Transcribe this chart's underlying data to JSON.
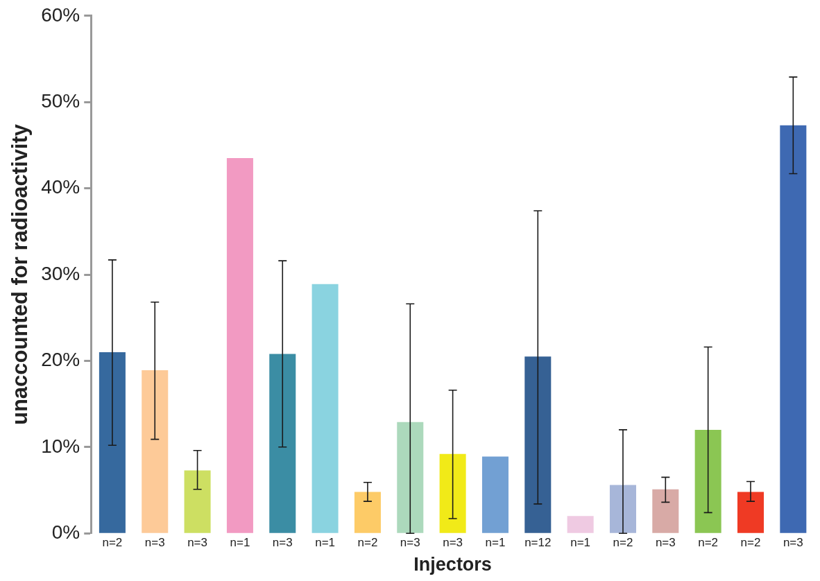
{
  "chart_data": {
    "type": "bar",
    "xlabel": "Injectors",
    "ylabel": "unaccounted for radioactivity",
    "categories": [
      "n=2",
      "n=3",
      "n=3",
      "n=1",
      "n=3",
      "n=1",
      "n=2",
      "n=3",
      "n=3",
      "n=1",
      "n=12",
      "n=1",
      "n=2",
      "n=3",
      "n=2",
      "n=2",
      "n=3"
    ],
    "values": [
      21.0,
      18.9,
      7.3,
      43.5,
      20.8,
      28.9,
      4.8,
      12.9,
      9.2,
      8.9,
      20.5,
      2.0,
      5.6,
      5.1,
      12.0,
      4.8,
      47.3
    ],
    "errors": [
      [
        10.2,
        31.7
      ],
      [
        10.9,
        26.8
      ],
      [
        5.1,
        9.6
      ],
      null,
      [
        10.0,
        31.6
      ],
      null,
      [
        3.7,
        5.9
      ],
      [
        0,
        26.6
      ],
      [
        1.7,
        16.6
      ],
      null,
      [
        3.4,
        37.4
      ],
      null,
      [
        0,
        12.0
      ],
      [
        3.6,
        6.5
      ],
      [
        2.4,
        21.6
      ],
      [
        3.7,
        6.0
      ],
      [
        41.7,
        52.9
      ]
    ],
    "colors": [
      "#36699e",
      "#fdca98",
      "#cddf62",
      "#f29ac2",
      "#3b8da4",
      "#8ad3e0",
      "#fdcb67",
      "#acd9bc",
      "#f1ea18",
      "#72a0d3",
      "#366194",
      "#efcae2",
      "#a7b6d9",
      "#d8aaa6",
      "#8bc653",
      "#ef3a24",
      "#3e69b2"
    ],
    "ylim": [
      0,
      60
    ],
    "yticks": [
      {
        "value": 0,
        "label": "0%"
      },
      {
        "value": 10,
        "label": "10%"
      },
      {
        "value": 20,
        "label": "20%"
      },
      {
        "value": 30,
        "label": "30%"
      },
      {
        "value": 40,
        "label": "40%"
      },
      {
        "value": 50,
        "label": "50%"
      },
      {
        "value": 60,
        "label": "60%"
      }
    ],
    "grid": false,
    "legend": false
  }
}
